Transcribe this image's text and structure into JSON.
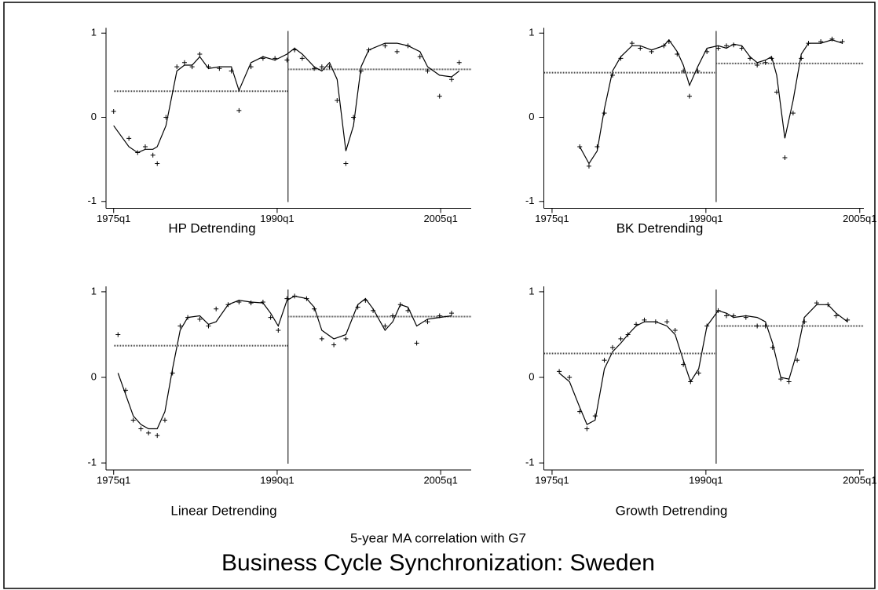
{
  "note": "5-year MA correlation with G7",
  "title": "Business Cycle Synchronization: Sweden",
  "chart_data": [
    {
      "type": "line",
      "title": "HP Detrending",
      "x": [
        1975.0,
        1976.4,
        1977.2,
        1977.9,
        1978.6,
        1979.0,
        1979.8,
        1980.8,
        1981.5,
        1982.2,
        1982.9,
        1983.7,
        1984.7,
        1985.8,
        1986.5,
        1987.6,
        1988.7,
        1989.8,
        1990.9,
        1991.6,
        1992.3,
        1993.4,
        1994.1,
        1994.8,
        1995.5,
        1996.3,
        1997.0,
        1997.7,
        1998.4,
        1999.9,
        2001.0,
        2002.0,
        2003.1,
        2003.8,
        2004.9,
        2006.0,
        2006.7
      ],
      "series": [
        {
          "type": "line",
          "color": "#000000",
          "values": [
            -0.1,
            -0.35,
            -0.42,
            -0.38,
            -0.38,
            -0.35,
            -0.1,
            0.55,
            0.62,
            0.62,
            0.72,
            0.58,
            0.6,
            0.6,
            0.32,
            0.65,
            0.72,
            0.68,
            0.75,
            0.82,
            0.75,
            0.6,
            0.55,
            0.65,
            0.45,
            -0.4,
            -0.1,
            0.6,
            0.8,
            0.88,
            0.88,
            0.85,
            0.78,
            0.6,
            0.5,
            0.48,
            0.55
          ]
        },
        {
          "type": "scatter",
          "color": "#000000",
          "values": [
            0.07,
            -0.25,
            -0.42,
            -0.35,
            -0.45,
            -0.55,
            0.0,
            0.6,
            0.65,
            0.6,
            0.75,
            0.6,
            0.58,
            0.55,
            0.08,
            0.6,
            0.7,
            0.7,
            0.68,
            0.8,
            0.7,
            0.58,
            0.6,
            0.6,
            0.2,
            -0.55,
            0.0,
            0.55,
            0.8,
            0.85,
            0.78,
            0.85,
            0.72,
            0.55,
            0.25,
            0.45,
            0.65
          ]
        }
      ],
      "break_x": 1991,
      "means": [
        0.31,
        0.57
      ],
      "mean_color": "#444444",
      "xlim": [
        1974.3,
        2007.8
      ],
      "ylim": [
        -1.1,
        1.1
      ],
      "yticks": [
        -1,
        0,
        1
      ],
      "xticks": [
        {
          "value": 1975,
          "label": "1975q1"
        },
        {
          "value": 1990,
          "label": "1990q1"
        },
        {
          "value": 2005,
          "label": "2005q1"
        }
      ]
    },
    {
      "type": "line",
      "title": "BK Detrending",
      "x": [
        1977.7,
        1978.6,
        1979.4,
        1980.1,
        1980.9,
        1981.7,
        1982.8,
        1983.6,
        1984.7,
        1985.9,
        1986.4,
        1987.2,
        1987.8,
        1988.4,
        1989.2,
        1990.1,
        1991.2,
        1992.0,
        1992.7,
        1993.5,
        1994.3,
        1995.0,
        1995.8,
        1996.4,
        1996.9,
        1997.7,
        1998.5,
        1999.3,
        2000.0,
        2001.2,
        2002.3,
        2003.3
      ],
      "series": [
        {
          "type": "line",
          "color": "#000000",
          "values": [
            -0.35,
            -0.55,
            -0.4,
            0.1,
            0.55,
            0.72,
            0.85,
            0.85,
            0.8,
            0.85,
            0.92,
            0.78,
            0.62,
            0.38,
            0.6,
            0.82,
            0.85,
            0.82,
            0.87,
            0.85,
            0.72,
            0.65,
            0.68,
            0.72,
            0.5,
            -0.25,
            0.2,
            0.75,
            0.88,
            0.88,
            0.92,
            0.88
          ]
        },
        {
          "type": "scatter",
          "color": "#000000",
          "values": [
            -0.35,
            -0.58,
            -0.35,
            0.05,
            0.5,
            0.7,
            0.88,
            0.82,
            0.78,
            0.85,
            0.9,
            0.75,
            0.55,
            0.25,
            0.55,
            0.78,
            0.82,
            0.85,
            0.86,
            0.82,
            0.7,
            0.62,
            0.65,
            0.7,
            0.3,
            -0.48,
            0.05,
            0.7,
            0.88,
            0.9,
            0.93,
            0.9
          ]
        }
      ],
      "break_x": 1991,
      "means": [
        0.53,
        0.64
      ],
      "mean_color": "#444444",
      "xlim": [
        1974.2,
        2005.4
      ],
      "ylim": [
        -1.1,
        1.1
      ],
      "yticks": [
        -1,
        0,
        1
      ],
      "xticks": [
        {
          "value": 1975,
          "label": "1975q1"
        },
        {
          "value": 1990,
          "label": "1990q1"
        },
        {
          "value": 2005,
          "label": "2005q1"
        }
      ]
    },
    {
      "type": "line",
      "title": "Linear Detrending",
      "x": [
        1975.4,
        1976.1,
        1976.8,
        1977.5,
        1978.2,
        1979.0,
        1979.7,
        1980.4,
        1981.1,
        1981.8,
        1982.9,
        1983.7,
        1984.4,
        1985.5,
        1986.5,
        1987.6,
        1988.7,
        1989.4,
        1990.1,
        1990.9,
        1991.6,
        1992.7,
        1993.4,
        1994.1,
        1995.2,
        1996.3,
        1997.4,
        1998.1,
        1998.8,
        1999.9,
        2000.6,
        2001.3,
        2002.0,
        2002.8,
        2003.8,
        2004.9,
        2006.0
      ],
      "series": [
        {
          "type": "line",
          "color": "#000000",
          "values": [
            0.05,
            -0.2,
            -0.45,
            -0.55,
            -0.6,
            -0.6,
            -0.4,
            0.1,
            0.55,
            0.7,
            0.72,
            0.62,
            0.65,
            0.85,
            0.9,
            0.88,
            0.87,
            0.75,
            0.6,
            0.9,
            0.95,
            0.92,
            0.82,
            0.55,
            0.45,
            0.5,
            0.85,
            0.92,
            0.8,
            0.55,
            0.65,
            0.85,
            0.82,
            0.6,
            0.68,
            0.7,
            0.72
          ]
        },
        {
          "type": "scatter",
          "color": "#000000",
          "values": [
            0.5,
            -0.15,
            -0.5,
            -0.6,
            -0.65,
            -0.68,
            -0.5,
            0.05,
            0.6,
            0.7,
            0.68,
            0.6,
            0.8,
            0.85,
            0.88,
            0.87,
            0.88,
            0.7,
            0.55,
            0.92,
            0.95,
            0.92,
            0.8,
            0.45,
            0.38,
            0.45,
            0.82,
            0.9,
            0.78,
            0.6,
            0.72,
            0.85,
            0.78,
            0.4,
            0.65,
            0.72,
            0.75
          ]
        }
      ],
      "break_x": 1991,
      "means": [
        0.37,
        0.71
      ],
      "mean_color": "#444444",
      "xlim": [
        1974.3,
        2007.8
      ],
      "ylim": [
        -1.1,
        1.1
      ],
      "yticks": [
        -1,
        0,
        1
      ],
      "xticks": [
        {
          "value": 1975,
          "label": "1975q1"
        },
        {
          "value": 1990,
          "label": "1990q1"
        },
        {
          "value": 2005,
          "label": "2005q1"
        }
      ]
    },
    {
      "type": "line",
      "title": "Growth Detrending",
      "x": [
        1975.7,
        1976.7,
        1977.7,
        1978.4,
        1979.2,
        1980.1,
        1980.9,
        1981.7,
        1982.4,
        1983.2,
        1984.0,
        1985.1,
        1986.2,
        1987.0,
        1987.8,
        1988.5,
        1989.3,
        1990.1,
        1991.2,
        1992.0,
        1992.7,
        1993.9,
        1995.0,
        1995.8,
        1996.5,
        1997.3,
        1998.1,
        1998.9,
        1999.6,
        2000.8,
        2001.9,
        2002.7,
        2003.8
      ],
      "series": [
        {
          "type": "line",
          "color": "#000000",
          "values": [
            0.05,
            -0.05,
            -0.35,
            -0.55,
            -0.5,
            0.1,
            0.3,
            0.4,
            0.5,
            0.6,
            0.65,
            0.65,
            0.6,
            0.5,
            0.2,
            -0.05,
            0.1,
            0.6,
            0.78,
            0.75,
            0.7,
            0.72,
            0.7,
            0.65,
            0.4,
            0.0,
            -0.02,
            0.3,
            0.7,
            0.85,
            0.85,
            0.75,
            0.65
          ]
        },
        {
          "type": "scatter",
          "color": "#000000",
          "values": [
            0.07,
            0.0,
            -0.4,
            -0.6,
            -0.45,
            0.2,
            0.35,
            0.45,
            0.5,
            0.62,
            0.67,
            0.65,
            0.65,
            0.55,
            0.15,
            -0.05,
            0.05,
            0.6,
            0.78,
            0.72,
            0.72,
            0.7,
            0.6,
            0.6,
            0.35,
            -0.02,
            -0.05,
            0.2,
            0.65,
            0.87,
            0.85,
            0.72,
            0.67
          ]
        }
      ],
      "break_x": 1991,
      "means": [
        0.28,
        0.6
      ],
      "mean_color": "#444444",
      "xlim": [
        1974.2,
        2005.4
      ],
      "ylim": [
        -1.1,
        1.1
      ],
      "yticks": [
        -1,
        0,
        1
      ],
      "xticks": [
        {
          "value": 1975,
          "label": "1975q1"
        },
        {
          "value": 1990,
          "label": "1990q1"
        },
        {
          "value": 2005,
          "label": "2005q1"
        }
      ]
    }
  ]
}
